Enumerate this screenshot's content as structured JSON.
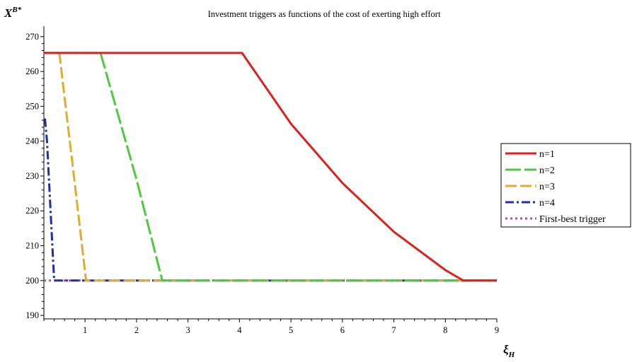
{
  "chart_data": {
    "type": "line",
    "title": "Investment triggers as functions of the cost of exerting high effort",
    "ylabel": {
      "base": "X",
      "superscript": "B*"
    },
    "xlabel": {
      "base": "ξ",
      "subscript": "H"
    },
    "xlim": [
      0.2,
      9
    ],
    "ylim": [
      189,
      273
    ],
    "xticks": [
      1,
      2,
      3,
      4,
      5,
      6,
      7,
      8,
      9
    ],
    "yticks": [
      190,
      200,
      210,
      220,
      230,
      240,
      250,
      260,
      270
    ],
    "legend_position": "right",
    "series": [
      {
        "name": "n=1",
        "color": "#e01e1e",
        "dash": "",
        "width": 3,
        "x": [
          0.2,
          4.05,
          5.0,
          6.0,
          7.0,
          8.0,
          8.35,
          9.0
        ],
        "y": [
          265.3,
          265.3,
          245.0,
          228.0,
          214.0,
          203.0,
          200.0,
          200.0
        ]
      },
      {
        "name": "n=2",
        "color": "#4dc93f",
        "dash": "22 5",
        "width": 3,
        "x": [
          0.2,
          1.3,
          2.0,
          2.5,
          9.0
        ],
        "y": [
          265.3,
          265.3,
          229.0,
          200.0,
          200.0
        ]
      },
      {
        "name": "n=3",
        "color": "#dcae2a",
        "dash": "16 5",
        "width": 3,
        "x": [
          0.2,
          0.5,
          0.8,
          1.02,
          9.0
        ],
        "y": [
          265.3,
          265.3,
          228.0,
          200.0,
          200.0
        ]
      },
      {
        "name": "n=4",
        "color": "#1f2fa8",
        "dash": "12 4 3 4",
        "width": 3,
        "x": [
          0.22,
          0.26,
          0.4,
          9.0
        ],
        "y": [
          246.5,
          240.0,
          200.0,
          200.0
        ]
      },
      {
        "name": "First-best trigger",
        "color": "#b14fb1",
        "dash": "3 4",
        "width": 3,
        "x": [
          0.2,
          9.0
        ],
        "y": [
          200.0,
          200.0
        ]
      }
    ]
  }
}
